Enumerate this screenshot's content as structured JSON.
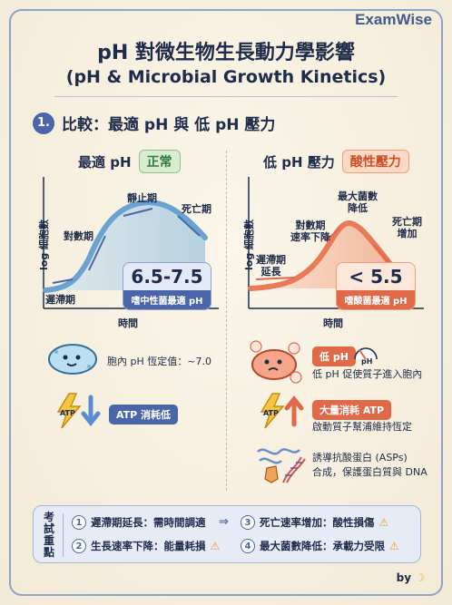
{
  "brand": "ExamWise",
  "title": "pH 對微生物生長動力學影響",
  "subtitle": "(pH & Microbial Growth Kinetics)",
  "section": {
    "number": "1.",
    "text": "比較：最適 pH 與 低 pH 壓力"
  },
  "left": {
    "heading": "最適 pH",
    "tag": "正常",
    "ylabel": "log 細胞數",
    "xlabel": "時間",
    "phase_lag": "遲滯期",
    "phase_log": "對數期",
    "phase_stationary": "靜止期",
    "phase_death": "死亡期",
    "value": "6.5-7.5",
    "value_caption": "嗜中性菌最適 pH",
    "internal_ph": "胞內 pH 恆定值：~7.0",
    "atp_pill": "ATP 消耗低",
    "icons": [
      "bacteria-happy-icon",
      "atp-bolt-icon",
      "arrow-down-icon"
    ]
  },
  "right": {
    "heading": "低 pH 壓力",
    "tag": "酸性壓力",
    "ylabel": "log 細胞數",
    "xlabel": "時間",
    "lag_extended": "遲滯期\n延長",
    "log_slower": "對數期\n速率下降",
    "max_reduced": "最大菌數\n降低",
    "death_increase": "死亡期\n增加",
    "value": "< 5.5",
    "value_caption": "嗜酸菌最適 pH",
    "low_ph_pill": "低 pH",
    "gauge_label": "pH",
    "proton_text": "低 pH 促使質子進入胞內",
    "atp_pill": "大量消耗 ATP",
    "atp_text": "啟動質子幫浦維持恆定",
    "asp_line1": "誘導抗酸蛋白 (ASPs)",
    "asp_line2": "合成，保護蛋白質與 DNA",
    "icons": [
      "bacteria-stressed-icon",
      "gauge-icon",
      "atp-bolt-icon",
      "arrow-up-icon",
      "protein-dna-icon"
    ]
  },
  "exam": {
    "label": "考試重點",
    "items": [
      {
        "num": "1",
        "text": "遲滯期延長：需時間調適"
      },
      {
        "num": "3",
        "text": "死亡速率增加：酸性損傷"
      },
      {
        "num": "2",
        "text": "生長速率下降：能量耗損"
      },
      {
        "num": "4",
        "text": "最大菌數降低：承載力受限"
      }
    ]
  },
  "byline": "by",
  "colors": {
    "accent_blue": "#4a66a8",
    "accent_red": "#e0694a",
    "warn": "#e8a317"
  }
}
